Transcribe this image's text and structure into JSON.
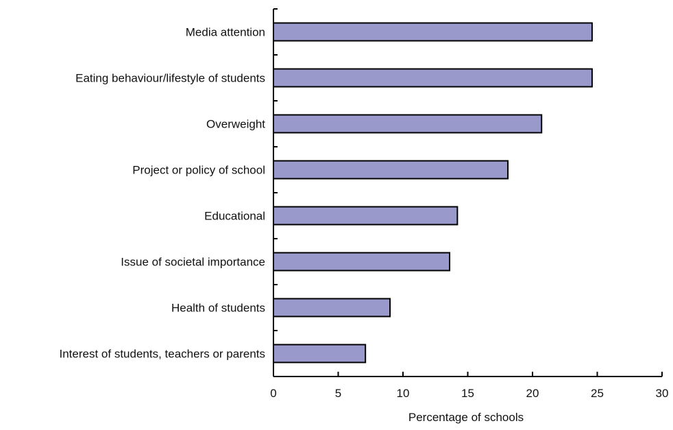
{
  "chart_data": {
    "type": "bar",
    "orientation": "horizontal",
    "categories": [
      "Media attention",
      "Eating behaviour/lifestyle of students",
      "Overweight",
      "Project or policy of school",
      "Educational",
      "Issue of societal importance",
      "Health of students",
      "Interest of students, teachers or parents"
    ],
    "values": [
      24.6,
      24.6,
      20.7,
      18.1,
      14.2,
      13.6,
      9.0,
      7.1
    ],
    "title": "",
    "xlabel": "Percentage of schools",
    "ylabel": "",
    "xlim": [
      0,
      30
    ],
    "xticks": [
      "0",
      "5",
      "10",
      "15",
      "20",
      "25",
      "30"
    ],
    "grid": false,
    "legend": "none",
    "colors": {
      "bar_fill": "#9999cc",
      "bar_stroke": "#000000",
      "axis": "#000000"
    }
  }
}
